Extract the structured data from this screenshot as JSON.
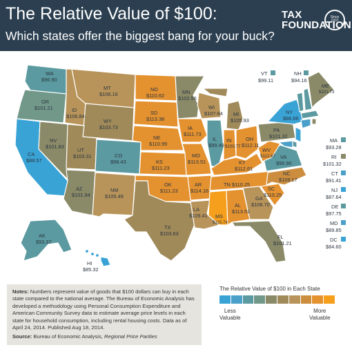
{
  "header": {
    "title": "The Relative Value of $100:",
    "subtitle": "Which states offer the biggest bang for your buck?",
    "logo_line1": "TAX",
    "logo_line2": "FOUNDATION",
    "seal_line1": "Since",
    "seal_line2": "1937"
  },
  "colors": {
    "header_bg": "#2b3f50",
    "less_valuable": "#3aa3d6",
    "teal": "#5b9aa0",
    "olive": "#8a8a68",
    "tan": "#b8945a",
    "orange": "#e4912f",
    "most_valuable": "#f59f1c"
  },
  "states": {
    "WA": {
      "abbr": "WA",
      "value": "$96.90"
    },
    "OR": {
      "abbr": "OR",
      "value": "$101.21"
    },
    "CA": {
      "abbr": "CA",
      "value": "$88.57"
    },
    "NV": {
      "abbr": "NV",
      "value": "$101.83"
    },
    "ID": {
      "abbr": "ID",
      "value": "$106.84"
    },
    "MT": {
      "abbr": "MT",
      "value": "$106.16"
    },
    "WY": {
      "abbr": "WY",
      "value": "$103.73"
    },
    "UT": {
      "abbr": "UT",
      "value": "$103.31"
    },
    "AZ": {
      "abbr": "AZ",
      "value": "$101.94"
    },
    "CO": {
      "abbr": "CO",
      "value": "$98.43"
    },
    "NM": {
      "abbr": "NM",
      "value": "$105.49"
    },
    "ND": {
      "abbr": "ND",
      "value": "$110.62"
    },
    "SD": {
      "abbr": "SD",
      "value": "$113.38"
    },
    "NE": {
      "abbr": "NE",
      "value": "$110.99"
    },
    "KS": {
      "abbr": "KS",
      "value": "$111.23"
    },
    "OK": {
      "abbr": "OK",
      "value": "$111.23"
    },
    "TX": {
      "abbr": "TX",
      "value": "$103.63"
    },
    "MN": {
      "abbr": "MN",
      "value": "$102.56"
    },
    "IA": {
      "abbr": "IA",
      "value": "$111.73"
    },
    "MO": {
      "abbr": "MO",
      "value": "$113.51"
    },
    "AR": {
      "abbr": "AR",
      "value": "$114.16"
    },
    "LA": {
      "abbr": "LA",
      "value": "$109.41"
    },
    "WI": {
      "abbr": "WI",
      "value": "$107.64"
    },
    "IL": {
      "abbr": "IL",
      "value": "$99.40"
    },
    "MI": {
      "abbr": "MI",
      "value": "$105.93"
    },
    "IN": {
      "abbr": "IN",
      "value": "$109.77"
    },
    "OH": {
      "abbr": "OH",
      "value": "$112.11"
    },
    "KY": {
      "abbr": "KY",
      "value": "$112.61"
    },
    "TN": {
      "abbr": "TN",
      "value": "$110.25"
    },
    "MS": {
      "abbr": "MS",
      "value": "$115.74"
    },
    "AL": {
      "abbr": "AL",
      "value": "$113.51"
    },
    "GA": {
      "abbr": "GA",
      "value": "$108.70"
    },
    "FL": {
      "abbr": "FL",
      "value": "$101.21"
    },
    "SC": {
      "abbr": "SC",
      "value": "$110.25"
    },
    "NC": {
      "abbr": "NC",
      "value": "$109.17"
    },
    "VA": {
      "abbr": "VA",
      "value": "$96.90"
    },
    "WV": {
      "abbr": "WV",
      "value": "$112.87"
    },
    "PA": {
      "abbr": "PA",
      "value": "$101.32"
    },
    "NY": {
      "abbr": "NY",
      "value": "$86.66"
    },
    "ME": {
      "abbr": "ME",
      "value": "$101.73"
    },
    "AK": {
      "abbr": "AK",
      "value": "$93.37"
    },
    "HI": {
      "abbr": "HI",
      "value": "$85.32"
    }
  },
  "callouts": {
    "VT": {
      "abbr": "VT",
      "value": "$99.11"
    },
    "NH": {
      "abbr": "NH",
      "value": "$94.16"
    },
    "MA": {
      "abbr": "MA",
      "value": "$93.28"
    },
    "RI": {
      "abbr": "RI",
      "value": "$101.32"
    },
    "CT": {
      "abbr": "CT",
      "value": "$91.41"
    },
    "NJ": {
      "abbr": "NJ",
      "value": "$87.64"
    },
    "DE": {
      "abbr": "DE",
      "value": "$97.75"
    },
    "MD": {
      "abbr": "MD",
      "value": "$89.85"
    },
    "DC": {
      "abbr": "DC",
      "value": "$84.60"
    }
  },
  "notes": {
    "label": "Notes:",
    "text": "Numbers represent value of goods that $100 dollars can buy in each state compared to the national average. The Bureau of Economic Analysis has developed a methodology using Personal Consumption Expenditure and American Community Survey data to estimate average price levels in each state for household consumption, including rental housing costs.  Data as of April 24, 2014. Published Aug 18, 2014.",
    "source_label": "Source:",
    "source_text": "Bureau of Economic Analysis, ",
    "source_title": "Regional Price Parities"
  },
  "legend": {
    "title": "The Relative Value of $100 in Each State",
    "less_line1": "Less",
    "less_line2": "Valuable",
    "more_line1": "More",
    "more_line2": "Valuable",
    "scale": [
      "#3aa3d6",
      "#4aa0c8",
      "#5b9aa0",
      "#72988a",
      "#8a8a68",
      "#a08a5a",
      "#b8945a",
      "#cc8e3e",
      "#e4912f",
      "#f59f1c"
    ]
  }
}
